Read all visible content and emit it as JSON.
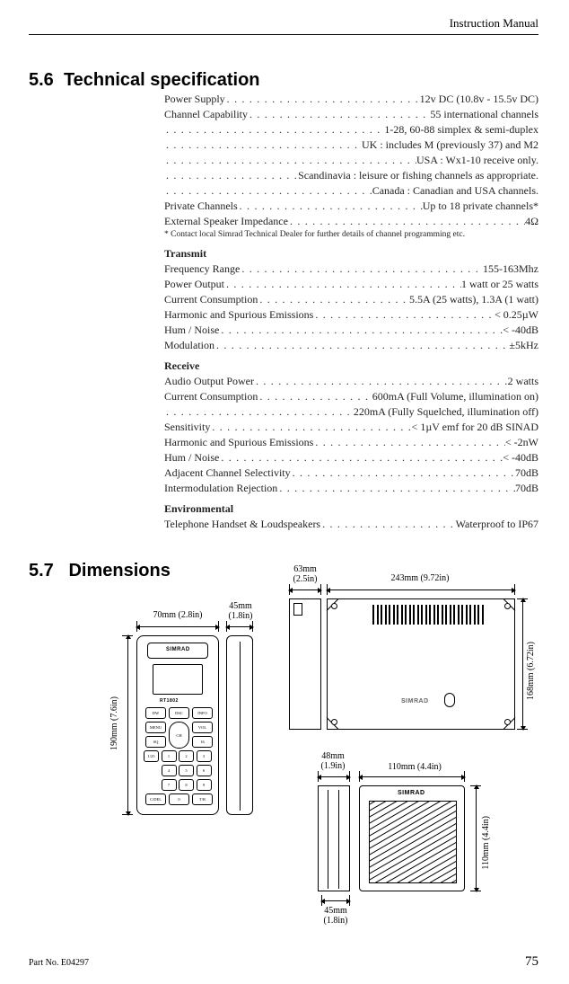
{
  "header": {
    "title": "Instruction Manual"
  },
  "section56": {
    "number": "5.6",
    "title": "Technical specification"
  },
  "section57": {
    "number": "5.7",
    "title": "Dimensions"
  },
  "specs": {
    "general": [
      {
        "label": "Power Supply",
        "value": "12v DC (10.8v - 15.5v DC)"
      },
      {
        "label": "Channel Capability",
        "value": "55 international channels"
      },
      {
        "label": "",
        "value": "1-28, 60-88 simplex & semi-duplex"
      },
      {
        "label": "",
        "value": "UK : includes M (previously 37) and M2"
      },
      {
        "label": "",
        "value": "USA : Wx1-10 receive only."
      },
      {
        "label": "",
        "value": "Scandinavia : leisure or fishing channels as appropriate."
      },
      {
        "label": "",
        "value": "Canada : Canadian and USA channels."
      },
      {
        "label": "Private Channels",
        "value": "Up to 18 private channels*"
      },
      {
        "label": "External Speaker Impedance",
        "value": "4Ω"
      }
    ],
    "footnote": "* Contact local Simrad Technical Dealer for further details of channel programming etc.",
    "transmit_head": "Transmit",
    "transmit": [
      {
        "label": "Frequency Range",
        "value": "155-163Mhz"
      },
      {
        "label": "Power Output",
        "value": "1 watt or 25 watts"
      },
      {
        "label": "Current Consumption",
        "value": "5.5A (25 watts), 1.3A (1 watt)"
      },
      {
        "label": "Harmonic and Spurious Emissions",
        "value": "< 0.25µW"
      },
      {
        "label": "Hum / Noise",
        "value": "< -40dB"
      },
      {
        "label": "Modulation",
        "value": "±5kHz"
      }
    ],
    "receive_head": "Receive",
    "receive": [
      {
        "label": "Audio Output Power",
        "value": "2 watts"
      },
      {
        "label": "Current Consumption",
        "value": "600mA (Full Volume, illumination on)"
      },
      {
        "label": "",
        "value": "220mA (Fully Squelched, illumination off)"
      },
      {
        "label": "Sensitivity",
        "value": "< 1µV emf for 20 dB SINAD"
      },
      {
        "label": "Harmonic and Spurious Emissions",
        "value": "< -2nW"
      },
      {
        "label": "Hum / Noise",
        "value": "< -40dB"
      },
      {
        "label": "Adjacent Channel Selectivity",
        "value": "70dB"
      },
      {
        "label": "Intermodulation Rejection",
        "value": "70dB"
      }
    ],
    "env_head": "Environmental",
    "env": [
      {
        "label": "Telephone Handset & Loudspeakers",
        "value": "Waterproof to IP67"
      }
    ]
  },
  "dimensions": {
    "handset": {
      "width_label": "70mm (2.8in)",
      "depth_label": "45mm\n(1.8in)",
      "height_label": "190mm (7.6in)",
      "brand": "SIMRAD",
      "model": "RT1802",
      "keys": [
        "DW",
        "DSC",
        "INFO",
        "MENU",
        "CH",
        "VOL",
        "SQ",
        "16",
        "1/25",
        "1",
        "2",
        "3",
        "4",
        "5",
        "6",
        "7",
        "8",
        "9",
        "C/DEL",
        "0",
        "T/R"
      ]
    },
    "mainunit": {
      "depth_label": "63mm\n(2.5in)",
      "width_label": "243mm (9.72in)",
      "height_label": "168mm (6.72in)",
      "brand": "SIMRAD"
    },
    "speaker": {
      "depth_label": "48mm\n(1.9in)",
      "width_label": "110mm (4.4in)",
      "height_label": "110mm (4.4in)",
      "depth2_label": "45mm\n(1.8in)",
      "brand": "SIMRAD"
    }
  },
  "footer": {
    "part": "Part No. E04297",
    "page": "75"
  }
}
